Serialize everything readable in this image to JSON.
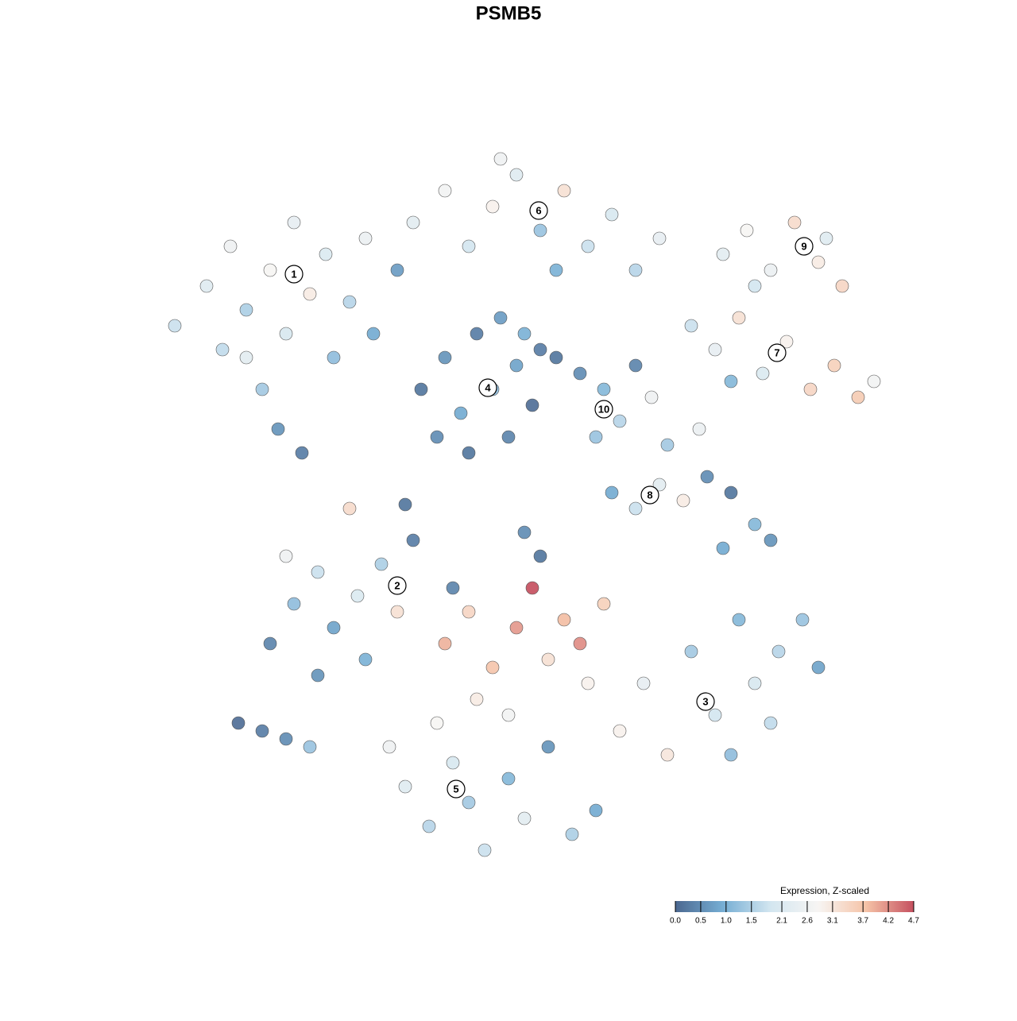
{
  "chart_data": {
    "type": "scatter",
    "title": "PSMB5",
    "x": [
      -42,
      -38,
      -35,
      -33,
      -30,
      -28,
      -27,
      -25,
      -23,
      -22,
      -20,
      -18,
      -31,
      -29,
      -26,
      -33,
      -17,
      -36,
      -12,
      -8,
      -5,
      -2,
      1,
      4,
      7,
      10,
      13,
      16,
      19,
      -14,
      6,
      -1,
      27,
      30,
      33,
      36,
      39,
      42,
      40,
      31,
      23,
      26,
      29,
      32,
      35,
      38,
      41,
      44,
      46,
      28,
      -11,
      -8,
      -6,
      -4,
      -2,
      0,
      1,
      3,
      -9,
      -5,
      2,
      4,
      -1,
      6,
      9,
      12,
      14,
      11,
      16,
      18,
      13,
      16,
      19,
      22,
      25,
      28,
      31,
      33,
      20,
      24,
      27,
      -30,
      -27,
      -24,
      -22,
      -19,
      -16,
      -14,
      -24,
      -18,
      -12,
      -28,
      -34,
      -31,
      -28,
      -25,
      -8,
      -5,
      -2,
      1,
      3,
      5,
      7,
      10,
      12,
      -4,
      0,
      9,
      -7,
      4,
      14,
      17,
      20,
      23,
      26,
      29,
      31,
      34,
      37,
      39,
      28,
      33,
      -15,
      -13,
      -10,
      -7,
      -5,
      -3,
      0,
      2,
      5,
      8,
      11,
      -9,
      -20,
      -13,
      2
    ],
    "y": [
      23,
      28,
      33,
      25,
      30,
      22,
      36,
      27,
      32,
      19,
      26,
      34,
      15,
      10,
      7,
      19,
      22,
      20,
      36,
      40,
      33,
      38,
      42,
      35,
      40,
      33,
      37,
      30,
      34,
      30,
      30,
      44,
      32,
      35,
      30,
      36,
      31,
      28,
      34,
      28,
      23,
      20,
      24,
      17,
      21,
      15,
      18,
      14,
      16,
      16,
      15,
      19,
      12,
      22,
      15,
      9,
      18,
      13,
      9,
      7,
      22,
      20,
      24,
      19,
      17,
      15,
      11,
      9,
      18,
      14,
      2,
      0,
      3,
      1,
      4,
      2,
      -2,
      -4,
      8,
      10,
      -5,
      -17,
      -12,
      -8,
      -15,
      -11,
      -7,
      -13,
      -21,
      -19,
      -4,
      -6,
      -27,
      -28,
      -29,
      -30,
      -17,
      -13,
      -20,
      -15,
      -10,
      -19,
      -14,
      -22,
      -12,
      -24,
      -26,
      -17,
      -10,
      -6,
      -28,
      -22,
      -31,
      -18,
      -26,
      -14,
      -22,
      -18,
      -14,
      -20,
      -31,
      -27,
      -30,
      -35,
      -40,
      -32,
      -37,
      -43,
      -34,
      -39,
      -30,
      -41,
      -38,
      -27,
      0,
      0.5,
      -3
    ],
    "values": [
      1.8,
      2.2,
      2.6,
      1.5,
      2.8,
      2.0,
      2.4,
      3.0,
      2.1,
      1.2,
      1.6,
      2.5,
      1.4,
      0.6,
      0.3,
      2.3,
      0.9,
      1.7,
      2.3,
      2.7,
      1.9,
      2.9,
      2.2,
      1.3,
      3.2,
      1.8,
      2.0,
      1.6,
      2.4,
      0.7,
      1.0,
      2.6,
      2.3,
      2.8,
      2.5,
      3.3,
      3.0,
      3.4,
      2.2,
      1.9,
      1.8,
      2.4,
      3.2,
      2.1,
      2.9,
      3.4,
      3.5,
      3.6,
      2.7,
      1.1,
      0.2,
      0.6,
      0.9,
      0.3,
      1.2,
      0.4,
      0.8,
      0.1,
      0.5,
      0.2,
      1.0,
      0.3,
      0.7,
      0.2,
      0.5,
      1.1,
      1.6,
      1.3,
      0.4,
      2.6,
      0.9,
      1.8,
      2.3,
      3.0,
      0.5,
      0.2,
      1.1,
      0.6,
      1.4,
      2.5,
      0.9,
      0.4,
      1.2,
      1.8,
      0.8,
      2.1,
      1.5,
      3.2,
      0.6,
      1.0,
      0.3,
      2.6,
      0.1,
      0.3,
      0.5,
      1.3,
      3.9,
      3.4,
      3.7,
      4.1,
      4.7,
      3.2,
      3.8,
      2.9,
      3.5,
      3.0,
      2.7,
      4.2,
      0.4,
      0.2,
      2.9,
      2.4,
      3.1,
      1.4,
      1.9,
      1.1,
      2.0,
      1.6,
      1.3,
      0.8,
      1.2,
      1.7,
      2.6,
      2.2,
      1.6,
      2.0,
      1.4,
      1.8,
      1.1,
      2.3,
      0.6,
      1.5,
      0.9,
      2.8,
      3.3,
      0.2,
      0.5
    ],
    "clusters": [
      {
        "label": "1",
        "x": -27,
        "y": 29.5
      },
      {
        "label": "2",
        "x": -14,
        "y": -9.7
      },
      {
        "label": "3",
        "x": 24.8,
        "y": -24.3
      },
      {
        "label": "4",
        "x": -2.6,
        "y": 15.2
      },
      {
        "label": "5",
        "x": -6.6,
        "y": -35.3
      },
      {
        "label": "6",
        "x": 3.8,
        "y": 37.5
      },
      {
        "label": "7",
        "x": 33.8,
        "y": 19.6
      },
      {
        "label": "8",
        "x": 17.8,
        "y": 1.7
      },
      {
        "label": "9",
        "x": 37.2,
        "y": 33
      },
      {
        "label": "10",
        "x": 12,
        "y": 12.5
      }
    ],
    "legend_title": "Expression, Z-scaled",
    "clim": [
      0,
      4.7
    ],
    "cticks": [
      {
        "value": 0,
        "label": "0.0"
      },
      0.5,
      {
        "value": 1,
        "label": "1.0"
      },
      1.5,
      2.1,
      2.6,
      3.1,
      3.7,
      4.2,
      4.7
    ],
    "colormap": [
      "#4b6890",
      "#76aed4",
      "#d3e6f0",
      "#f7f5f3",
      "#f5c3a7",
      "#c5505f"
    ],
    "legend_position": "bottom-right"
  }
}
